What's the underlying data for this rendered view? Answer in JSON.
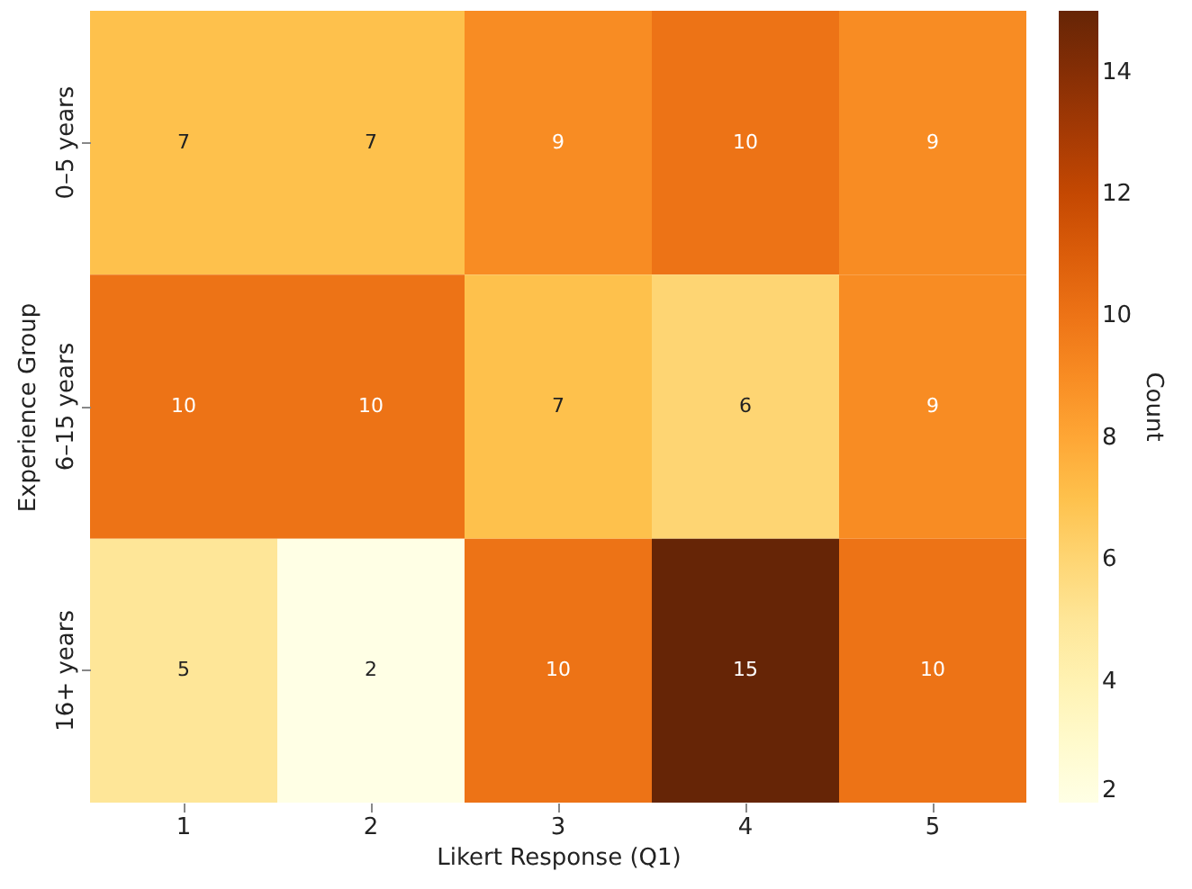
{
  "chart_data": {
    "type": "heatmap",
    "xlabel": "Likert Response (Q1)",
    "ylabel": "Experience Group",
    "clabel": "Count",
    "categories": [
      "1",
      "2",
      "3",
      "4",
      "5"
    ],
    "y_categories": [
      "0–5 years",
      "6–15 years",
      "16+ years"
    ],
    "cells": [
      [
        7,
        7,
        9,
        10,
        9
      ],
      [
        10,
        10,
        7,
        6,
        9
      ],
      [
        5,
        2,
        10,
        15,
        10
      ]
    ],
    "clim": [
      2,
      15
    ],
    "cticks": [
      2,
      4,
      6,
      8,
      10,
      12,
      14
    ],
    "data_labels": true
  }
}
